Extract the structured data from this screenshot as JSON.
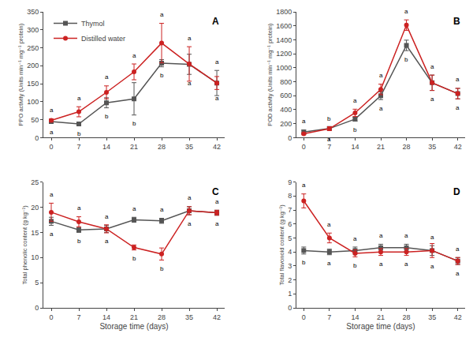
{
  "chart_data": [
    {
      "type": "line",
      "annotations": [
        "A"
      ],
      "x": [
        0,
        7,
        14,
        21,
        28,
        35,
        42
      ],
      "xlim": [
        -2,
        44
      ],
      "xticks": [
        0,
        7,
        14,
        21,
        28,
        35,
        42
      ],
      "ylabel": "PPO activity (Units min⁻¹ mg⁻¹ protein)",
      "ylim": [
        0,
        350
      ],
      "yticks": [
        0,
        50,
        100,
        150,
        200,
        250,
        300,
        350
      ],
      "grid": false,
      "legend": "upper left",
      "series": [
        {
          "name": "Thymol",
          "color": "#555555",
          "marker": "square",
          "line_style": "solid",
          "values": [
            45,
            38,
            97,
            108,
            207,
            204,
            152
          ],
          "error": [
            5,
            4,
            14,
            45,
            10,
            28,
            35
          ],
          "annotations": [
            "a",
            "b",
            "b",
            "b",
            "b",
            "a",
            "a"
          ]
        },
        {
          "name": "Distilled water",
          "color": "#cc2222",
          "marker": "circle",
          "line_style": "solid",
          "values": [
            48,
            72,
            126,
            183,
            263,
            205,
            152
          ],
          "error": [
            4,
            14,
            18,
            22,
            55,
            48,
            18
          ],
          "annotations": [
            "a",
            "a",
            "a",
            "a",
            "a",
            "a",
            "a"
          ]
        }
      ]
    },
    {
      "type": "line",
      "annotations": [
        "B"
      ],
      "x": [
        0,
        7,
        14,
        21,
        28,
        35,
        42
      ],
      "xlim": [
        -2,
        44
      ],
      "xticks": [
        0,
        7,
        14,
        21,
        28,
        35,
        42
      ],
      "ylabel": "POD activity (Units min⁻¹ mg⁻¹ protein)",
      "ylim": [
        0,
        1800
      ],
      "yticks": [
        0,
        200,
        400,
        600,
        800,
        1000,
        1200,
        1400,
        1600,
        1800
      ],
      "grid": false,
      "series": [
        {
          "name": "Thymol",
          "color": "#555555",
          "marker": "square",
          "line_style": "solid",
          "values": [
            80,
            130,
            265,
            600,
            1320,
            785,
            630
          ],
          "error": [
            28,
            18,
            28,
            55,
            75,
            110,
            75
          ],
          "annotations": [
            "a",
            "b",
            "b",
            "a",
            "b",
            "a",
            "a"
          ]
        },
        {
          "name": "Distilled water",
          "color": "#cc2222",
          "marker": "circle",
          "line_style": "solid",
          "values": [
            55,
            128,
            355,
            690,
            1610,
            785,
            630
          ],
          "error": [
            14,
            28,
            52,
            75,
            75,
            110,
            75
          ],
          "annotations": [
            "a",
            "a",
            "a",
            "a",
            "a",
            "a",
            "a"
          ]
        }
      ]
    },
    {
      "type": "line",
      "annotations": [
        "C"
      ],
      "x": [
        0,
        7,
        14,
        21,
        28,
        35,
        42
      ],
      "xlim": [
        -2,
        44
      ],
      "xticks": [
        0,
        7,
        14,
        21,
        28,
        35,
        42
      ],
      "xlabel": "Storage time (days)",
      "ylabel": "Total phenolic content (g kg⁻¹)",
      "ylim": [
        0,
        25
      ],
      "yticks": [
        0,
        5,
        10,
        15,
        20,
        25
      ],
      "grid": false,
      "series": [
        {
          "name": "Thymol",
          "color": "#555555",
          "marker": "square",
          "line_style": "solid",
          "values": [
            17.2,
            15.5,
            15.7,
            17.5,
            17.3,
            19.3,
            18.9
          ],
          "error": [
            0.8,
            0.5,
            0.7,
            0.5,
            0.5,
            0.8,
            0.5
          ],
          "annotations": [
            "a",
            "b",
            "a",
            "a",
            "a",
            "a",
            "a"
          ]
        },
        {
          "name": "Distilled water",
          "color": "#cc2222",
          "marker": "circle",
          "line_style": "solid",
          "values": [
            19.0,
            17.1,
            15.7,
            12.0,
            10.7,
            19.3,
            18.9
          ],
          "error": [
            1.8,
            1.0,
            0.8,
            0.5,
            1.2,
            0.8,
            0.5
          ],
          "annotations": [
            "a",
            "a",
            "a",
            "b",
            "b",
            "a",
            "a"
          ]
        }
      ]
    },
    {
      "type": "line",
      "annotations": [
        "D"
      ],
      "x": [
        0,
        7,
        14,
        21,
        28,
        35,
        42
      ],
      "xlim": [
        -2,
        44
      ],
      "xticks": [
        0,
        7,
        14,
        21,
        28,
        35,
        42
      ],
      "xlabel": "Storage time (days)",
      "ylabel": "Total flavonoid content (g kg⁻¹)",
      "ylim": [
        0,
        9
      ],
      "yticks": [
        0,
        1,
        2,
        3,
        4,
        5,
        6,
        7,
        8,
        9
      ],
      "grid": false,
      "series": [
        {
          "name": "Thymol",
          "color": "#555555",
          "marker": "square",
          "line_style": "solid",
          "values": [
            4.1,
            4.0,
            4.1,
            4.3,
            4.3,
            4.1,
            3.35
          ],
          "error": [
            0.25,
            0.2,
            0.25,
            0.25,
            0.25,
            0.35,
            0.25
          ],
          "annotations": [
            "b",
            "a",
            "a",
            "a",
            "a",
            "a",
            "a"
          ]
        },
        {
          "name": "Distilled water",
          "color": "#cc2222",
          "marker": "circle",
          "line_style": "solid",
          "values": [
            7.65,
            5.0,
            3.9,
            4.0,
            4.0,
            4.1,
            3.35
          ],
          "error": [
            0.5,
            0.35,
            0.25,
            0.25,
            0.25,
            0.5,
            0.25
          ],
          "annotations": [
            "a",
            "a",
            "b",
            "a",
            "a",
            "a",
            "a"
          ]
        }
      ]
    }
  ]
}
